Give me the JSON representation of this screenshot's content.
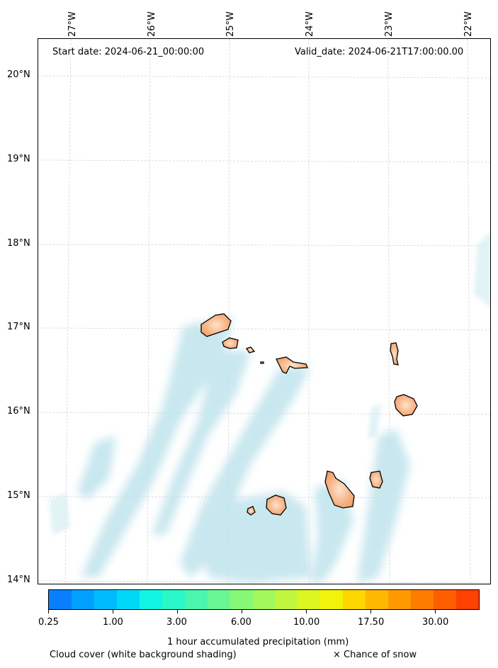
{
  "header": {
    "start_date": "Start date: 2024-06-21_00:00:00",
    "valid_date": "Valid_date: 2024-06-21T17:00:00.00"
  },
  "longitude_labels": [
    "27°W",
    "26°W",
    "25°W",
    "24°W",
    "23°W",
    "22°W"
  ],
  "latitude_labels": [
    "20°N",
    "19°N",
    "18°N",
    "17°N",
    "16°N",
    "15°N",
    "14°N"
  ],
  "colorbar": {
    "colors": [
      "#0a7ffe",
      "#00a0fe",
      "#00bcfd",
      "#00d8f8",
      "#10f5e4",
      "#2cf7c8",
      "#4af5ae",
      "#68f792",
      "#86f876",
      "#a2f85a",
      "#c0f73e",
      "#dcf622",
      "#f2f20a",
      "#fed600",
      "#feb800",
      "#fe9a00",
      "#fe7c00",
      "#fe5e00",
      "#fe4000"
    ],
    "tick_labels": [
      "0.25",
      "1.00",
      "3.00",
      "6.00",
      "10.00",
      "17.50",
      "30.00"
    ],
    "title": "1 hour accumulated precipitation (mm)"
  },
  "footer": {
    "cloud_note": "Cloud cover (white background shading)",
    "snow_note": "× Chance of snow"
  }
}
